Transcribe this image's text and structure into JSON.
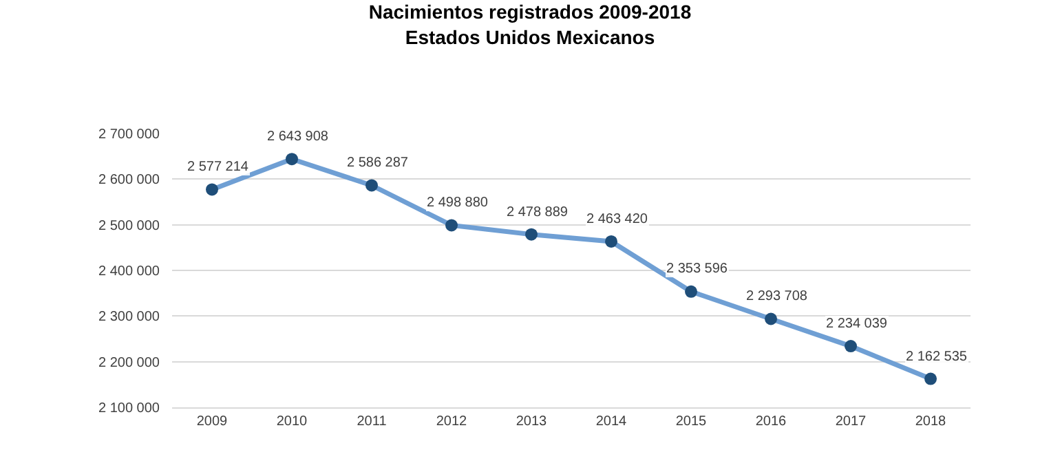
{
  "chart_data": {
    "type": "line",
    "title": "Nacimientos registrados 2009-2018\nEstados Unidos Mexicanos",
    "categories": [
      "2009",
      "2010",
      "2011",
      "2012",
      "2013",
      "2014",
      "2015",
      "2016",
      "2017",
      "2018"
    ],
    "series": [
      {
        "color": "#6f9fd4",
        "colors": [
          "#1f4e79",
          "#1f4e79",
          "#1f4e79",
          "#1f4e79",
          "#1f4e79",
          "#1f4e79",
          "#1f4e79",
          "#1f4e79",
          "#1f4e79",
          "#1f4e79"
        ],
        "values": [
          2577214,
          2643908,
          2586287,
          2498880,
          2478889,
          2463420,
          2353596,
          2293708,
          2234039,
          2162535
        ]
      }
    ],
    "ylim": [
      2100000,
      2700000
    ],
    "yticks": [
      {
        "value": 2100000,
        "label": "2 100 000"
      },
      {
        "value": 2200000,
        "label": "2 200 000"
      },
      {
        "value": 2300000,
        "label": "2 300 000"
      },
      {
        "value": 2400000,
        "label": "2 400 000"
      },
      {
        "value": 2500000,
        "label": "2 500 000"
      },
      {
        "value": 2600000,
        "label": "2 600 000"
      },
      {
        "value": 2700000,
        "label": "2 700 000"
      }
    ],
    "grid": "y",
    "marker": "circle",
    "line_style": "solid",
    "data_labels": true
  }
}
